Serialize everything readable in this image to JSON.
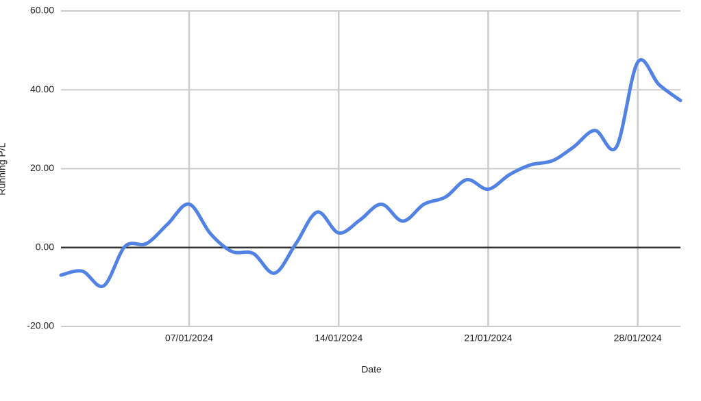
{
  "chart_data": {
    "type": "line",
    "x_label": "Date",
    "y_label": "Running P/L",
    "x": [
      "2024-01-01",
      "2024-01-02",
      "2024-01-03",
      "2024-01-04",
      "2024-01-05",
      "2024-01-06",
      "2024-01-07",
      "2024-01-08",
      "2024-01-09",
      "2024-01-10",
      "2024-01-11",
      "2024-01-12",
      "2024-01-13",
      "2024-01-14",
      "2024-01-15",
      "2024-01-16",
      "2024-01-17",
      "2024-01-18",
      "2024-01-19",
      "2024-01-20",
      "2024-01-21",
      "2024-01-22",
      "2024-01-23",
      "2024-01-24",
      "2024-01-25",
      "2024-01-26",
      "2024-01-27",
      "2024-01-28",
      "2024-01-29",
      "2024-01-30"
    ],
    "series": [
      {
        "name": "Running P/L",
        "color": "#5282e3",
        "values": [
          -7,
          -6,
          -9.7,
          0.3,
          1,
          6,
          11,
          3.5,
          -1,
          -1.5,
          -6.5,
          1,
          9,
          3.7,
          7,
          11,
          6.7,
          11,
          12.8,
          17.2,
          14.8,
          18.5,
          21,
          22,
          25.5,
          29.7,
          25.5,
          47,
          41.3,
          37.3
        ]
      }
    ],
    "xlim": [
      "2024-01-01",
      "2024-01-30"
    ],
    "xticks": [
      {
        "value": "2024-01-07",
        "label": "07/01/2024"
      },
      {
        "value": "2024-01-14",
        "label": "14/01/2024"
      },
      {
        "value": "2024-01-21",
        "label": "21/01/2024"
      },
      {
        "value": "2024-01-28",
        "label": "28/01/2024"
      }
    ],
    "ylim": [
      -20,
      60
    ],
    "yticks": [
      {
        "value": -20,
        "label": "-20.00"
      },
      {
        "value": 0,
        "label": "0.00"
      },
      {
        "value": 20,
        "label": "20.00"
      },
      {
        "value": 40,
        "label": "40.00"
      },
      {
        "value": 60,
        "label": "60.00"
      }
    ],
    "grid": true
  }
}
